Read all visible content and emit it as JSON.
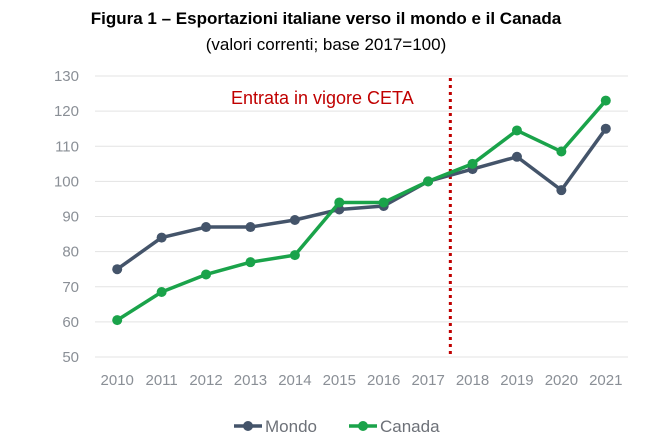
{
  "chart_data": {
    "type": "line",
    "title": "Figura 1 – Esportazioni italiane verso il mondo e il Canada",
    "subtitle": "(valori correnti; base 2017=100)",
    "categories": [
      "2010",
      "2011",
      "2012",
      "2013",
      "2014",
      "2015",
      "2016",
      "2017",
      "2018",
      "2019",
      "2020",
      "2021"
    ],
    "series": [
      {
        "name": "Mondo",
        "color": "#44546a",
        "values": [
          75,
          84,
          87,
          87,
          89,
          92,
          93,
          100,
          103.5,
          107,
          97.5,
          115
        ]
      },
      {
        "name": "Canada",
        "color": "#1aa34a",
        "values": [
          60.5,
          68.5,
          73.5,
          77,
          79,
          94,
          94,
          100,
          105,
          114.5,
          108.5,
          123
        ]
      }
    ],
    "ylim": [
      50,
      130
    ],
    "yticks": [
      50,
      60,
      70,
      80,
      90,
      100,
      110,
      120,
      130
    ],
    "grid": true,
    "legend": "bottom",
    "annotation": {
      "text": "Entrata in vigore CETA",
      "color": "#c00000",
      "between": [
        "2017",
        "2018"
      ]
    }
  }
}
